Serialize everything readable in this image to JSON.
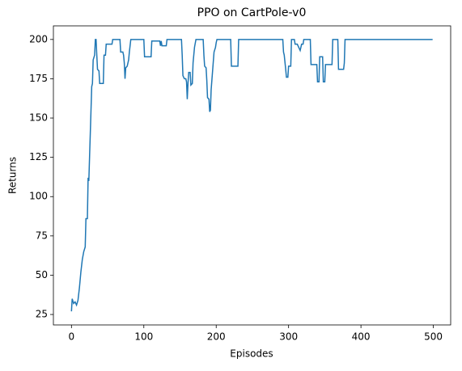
{
  "chart_data": {
    "type": "line",
    "title": "PPO on CartPole-v0",
    "xlabel": "Episodes",
    "ylabel": "Returns",
    "x": [
      0,
      1,
      3,
      5,
      7,
      9,
      11,
      13,
      15,
      17,
      19,
      20,
      22,
      23,
      24,
      25,
      26,
      27,
      28,
      29,
      30,
      32,
      33,
      34,
      35,
      36,
      38,
      39,
      44,
      45,
      47,
      48,
      56,
      57,
      67,
      68,
      71,
      72,
      73,
      74,
      75,
      77,
      79,
      80,
      82,
      100,
      101,
      110,
      111,
      122,
      123,
      124,
      125,
      131,
      132,
      152,
      153,
      154,
      156,
      158,
      159,
      160,
      161,
      162,
      164,
      165,
      167,
      168,
      170,
      172,
      182,
      183,
      184,
      186,
      187,
      188,
      190,
      191,
      192,
      193,
      195,
      197,
      199,
      200,
      201,
      220,
      221,
      230,
      231,
      292,
      293,
      294,
      296,
      297,
      299,
      300,
      303,
      304,
      308,
      309,
      312,
      314,
      316,
      318,
      320,
      321,
      330,
      331,
      339,
      340,
      342,
      343,
      347,
      348,
      350,
      351,
      360,
      361,
      368,
      369,
      376,
      377,
      378,
      499
    ],
    "values": [
      27,
      35,
      32,
      33,
      31,
      34,
      42,
      52,
      60,
      65,
      68,
      86,
      86,
      112,
      110,
      125,
      140,
      155,
      170,
      172,
      187,
      190,
      200,
      200,
      190,
      181,
      180,
      172,
      172,
      190,
      190,
      197,
      197,
      200,
      200,
      192,
      192,
      190,
      185,
      175,
      182,
      183,
      187,
      192,
      200,
      200,
      189,
      189,
      199,
      199,
      196,
      199,
      196,
      196,
      200,
      200,
      190,
      177,
      175,
      175,
      173,
      162,
      172,
      179,
      179,
      171,
      172,
      185,
      195,
      200,
      200,
      190,
      183,
      182,
      174,
      163,
      162,
      154,
      155,
      168,
      180,
      192,
      195,
      198,
      200,
      200,
      183,
      183,
      200,
      200,
      192,
      190,
      181,
      176,
      176,
      183,
      183,
      200,
      200,
      197,
      197,
      195,
      193,
      197,
      197,
      200,
      200,
      184,
      184,
      173,
      173,
      189,
      189,
      173,
      173,
      184,
      184,
      200,
      200,
      181,
      181,
      185,
      200,
      200
    ],
    "color": "#1f77b4",
    "xlim": [
      -24.95,
      523.95
    ],
    "xticks": [
      0,
      100,
      200,
      300,
      400,
      500
    ],
    "ylim": [
      18.35,
      208.65
    ],
    "yticks": [
      25,
      50,
      75,
      100,
      125,
      150,
      175,
      200
    ]
  }
}
